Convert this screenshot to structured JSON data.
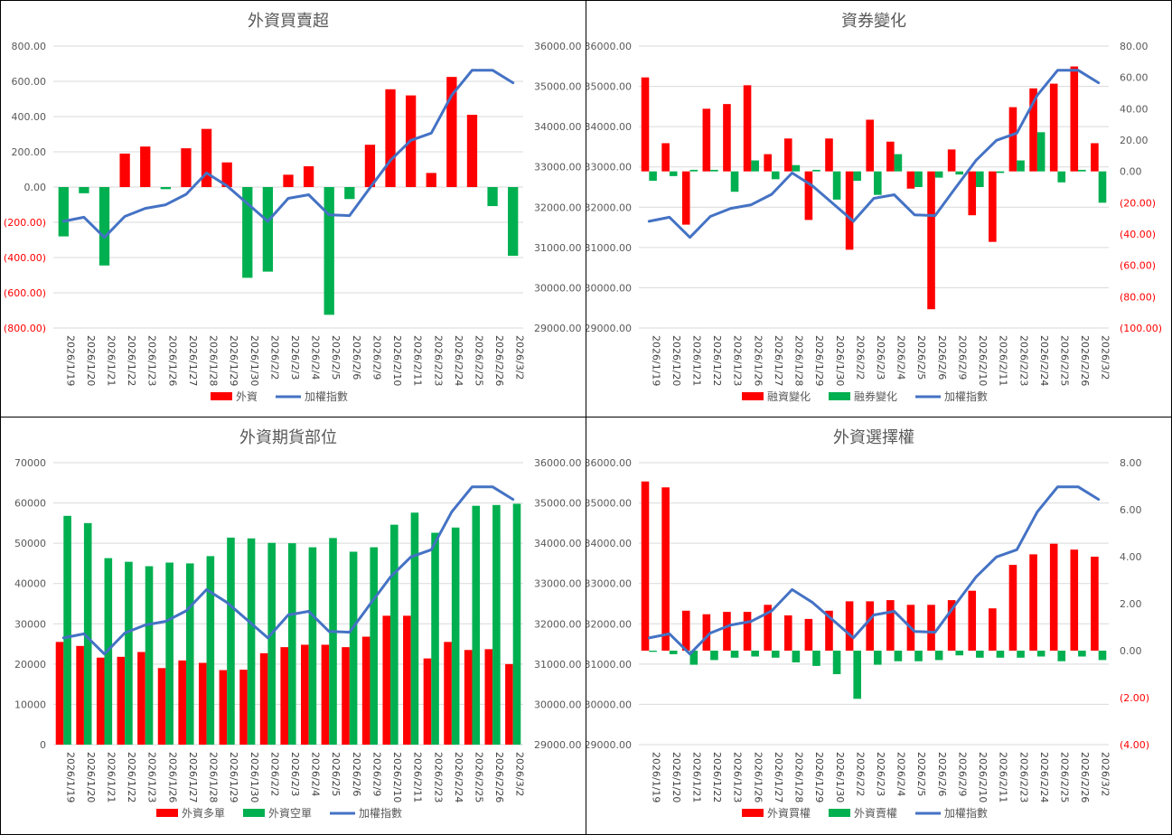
{
  "colors": {
    "red": "#ff0000",
    "green": "#00b050",
    "line": "#4472c4",
    "grid": "#d9d9d9",
    "text": "#595959",
    "neg": "#ff0000"
  },
  "chart_data": [
    {
      "type": "bar",
      "title": "外資買賣超",
      "categories": [
        "2026/1/19",
        "2026/1/20",
        "2026/1/21",
        "2026/1/22",
        "2026/1/23",
        "2026/1/26",
        "2026/1/27",
        "2026/1/28",
        "2026/1/29",
        "2026/1/30",
        "2026/2/2",
        "2026/2/3",
        "2026/2/4",
        "2026/2/5",
        "2026/2/6",
        "2026/2/9",
        "2026/2/10",
        "2026/2/11",
        "2026/2/23",
        "2026/2/24",
        "2026/2/25",
        "2026/2/26",
        "2026/3/2"
      ],
      "series": [
        {
          "name": "外資",
          "kind": "bar",
          "axis": "left",
          "color": "#ff0000",
          "negColor": "#00b050",
          "values": [
            -280,
            -35,
            -445,
            190,
            230,
            -12,
            220,
            330,
            140,
            -515,
            -480,
            70,
            118,
            -725,
            -68,
            240,
            555,
            520,
            80,
            625,
            410,
            -108,
            -390
          ]
        },
        {
          "name": "加權指數",
          "kind": "line",
          "axis": "right",
          "color": "#4472c4",
          "values": [
            31650,
            31750,
            31250,
            31770,
            31970,
            32060,
            32320,
            32850,
            32530,
            32090,
            31650,
            32220,
            32310,
            31810,
            31790,
            32480,
            33160,
            33660,
            33840,
            34780,
            35400,
            35400,
            35090
          ]
        }
      ],
      "leftAxis": {
        "min": -800,
        "max": 800,
        "step": 200,
        "ticks": [
          "(800.00)",
          "(600.00)",
          "(400.00)",
          "(200.00)",
          "0.00",
          "200.00",
          "400.00",
          "600.00",
          "800.00"
        ]
      },
      "rightAxis": {
        "min": 29000,
        "max": 36000,
        "step": 1000,
        "ticks": [
          "29000.00",
          "30000.00",
          "31000.00",
          "32000.00",
          "33000.00",
          "34000.00",
          "35000.00",
          "36000.00"
        ]
      },
      "grid": true,
      "legend_position": "bottom"
    },
    {
      "type": "bar",
      "title": "資券變化",
      "categories": [
        "2026/1/19",
        "2026/1/20",
        "2026/1/21",
        "2026/1/22",
        "2026/1/23",
        "2026/1/26",
        "2026/1/27",
        "2026/1/28",
        "2026/1/29",
        "2026/1/30",
        "2026/2/2",
        "2026/2/3",
        "2026/2/4",
        "2026/2/5",
        "2026/2/6",
        "2026/2/9",
        "2026/2/10",
        "2026/2/11",
        "2026/2/23",
        "2026/2/24",
        "2026/2/25",
        "2026/2/26",
        "2026/3/2"
      ],
      "series": [
        {
          "name": "融資變化",
          "kind": "bar",
          "axis": "right",
          "color": "#ff0000",
          "values": [
            60,
            18,
            -34,
            40,
            43,
            55,
            11,
            21,
            -31,
            21,
            -50,
            33,
            19,
            -11,
            -88,
            14,
            -28,
            -45,
            41,
            53,
            56,
            67,
            18
          ]
        },
        {
          "name": "融券變化",
          "kind": "bar",
          "axis": "right",
          "color": "#00b050",
          "values": [
            -6,
            -3,
            1,
            1,
            -13,
            7,
            -5,
            4,
            1,
            -18,
            -6,
            -15,
            11,
            -10,
            -4,
            -2,
            -10,
            -1,
            7,
            25,
            -7,
            1,
            -20
          ]
        },
        {
          "name": "加權指數",
          "kind": "line",
          "axis": "left",
          "color": "#4472c4",
          "values": [
            31650,
            31750,
            31250,
            31770,
            31970,
            32060,
            32320,
            32850,
            32530,
            32090,
            31650,
            32220,
            32310,
            31810,
            31790,
            32480,
            33160,
            33660,
            33840,
            34780,
            35400,
            35400,
            35090
          ]
        }
      ],
      "leftAxis": {
        "min": 29000,
        "max": 36000,
        "step": 1000,
        "ticks": [
          "29000.00",
          "30000.00",
          "31000.00",
          "32000.00",
          "33000.00",
          "34000.00",
          "35000.00",
          "36000.00"
        ]
      },
      "rightAxis": {
        "min": -100,
        "max": 80,
        "step": 20,
        "ticks": [
          "(100.00)",
          "(80.00)",
          "(60.00)",
          "(40.00)",
          "(20.00)",
          "0.00",
          "20.00",
          "40.00",
          "60.00",
          "80.00"
        ]
      },
      "grid": true,
      "legend_position": "bottom"
    },
    {
      "type": "bar",
      "title": "外資期貨部位",
      "categories": [
        "2026/1/19",
        "2026/1/20",
        "2026/1/21",
        "2026/1/22",
        "2026/1/23",
        "2026/1/26",
        "2026/1/27",
        "2026/1/28",
        "2026/1/29",
        "2026/1/30",
        "2026/2/2",
        "2026/2/3",
        "2026/2/4",
        "2026/2/5",
        "2026/2/6",
        "2026/2/9",
        "2026/2/10",
        "2026/2/11",
        "2026/2/23",
        "2026/2/24",
        "2026/2/25",
        "2026/2/26",
        "2026/3/2"
      ],
      "series": [
        {
          "name": "外資多單",
          "kind": "bar",
          "axis": "left",
          "color": "#ff0000",
          "values": [
            25500,
            24500,
            21600,
            21800,
            23000,
            19000,
            20900,
            20300,
            18500,
            18600,
            22700,
            24200,
            24800,
            24800,
            24200,
            26800,
            32000,
            32000,
            21400,
            25500,
            23500,
            23700,
            20000
          ]
        },
        {
          "name": "外資空單",
          "kind": "bar",
          "axis": "left",
          "color": "#00b050",
          "values": [
            56800,
            55000,
            46300,
            45400,
            44300,
            45200,
            45000,
            46800,
            51400,
            51200,
            50100,
            50000,
            49000,
            51300,
            47900,
            49000,
            54600,
            57600,
            52600,
            53900,
            59300,
            59500,
            59800
          ]
        },
        {
          "name": "加權指數",
          "kind": "line",
          "axis": "right",
          "color": "#4472c4",
          "values": [
            31650,
            31750,
            31250,
            31770,
            31970,
            32060,
            32320,
            32850,
            32530,
            32090,
            31650,
            32220,
            32310,
            31810,
            31790,
            32480,
            33160,
            33660,
            33840,
            34780,
            35400,
            35400,
            35090
          ]
        }
      ],
      "leftAxis": {
        "min": 0,
        "max": 70000,
        "step": 10000,
        "ticks": [
          "0",
          "10000",
          "20000",
          "30000",
          "40000",
          "50000",
          "60000",
          "70000"
        ]
      },
      "rightAxis": {
        "min": 29000,
        "max": 36000,
        "step": 1000,
        "ticks": [
          "29000.00",
          "30000.00",
          "31000.00",
          "32000.00",
          "33000.00",
          "34000.00",
          "35000.00",
          "36000.00"
        ]
      },
      "grid": true,
      "legend_position": "bottom"
    },
    {
      "type": "bar",
      "title": "外資選擇權",
      "categories": [
        "2026/1/19",
        "2026/1/20",
        "2026/1/21",
        "2026/1/22",
        "2026/1/23",
        "2026/1/26",
        "2026/1/27",
        "2026/1/28",
        "2026/1/29",
        "2026/1/30",
        "2026/2/2",
        "2026/2/3",
        "2026/2/4",
        "2026/2/5",
        "2026/2/6",
        "2026/2/9",
        "2026/2/10",
        "2026/2/11",
        "2026/2/23",
        "2026/2/24",
        "2026/2/25",
        "2026/2/26",
        "2026/3/2"
      ],
      "series": [
        {
          "name": "外資買權",
          "kind": "bar",
          "axis": "right",
          "color": "#ff0000",
          "values": [
            7.2,
            6.95,
            1.7,
            1.55,
            1.65,
            1.65,
            1.95,
            1.5,
            1.35,
            1.7,
            2.1,
            2.1,
            2.15,
            1.95,
            1.95,
            2.15,
            2.55,
            1.8,
            3.65,
            4.1,
            4.55,
            4.3,
            4.0
          ]
        },
        {
          "name": "外資賣權",
          "kind": "bar",
          "axis": "right",
          "color": "#00b050",
          "values": [
            -0.05,
            -0.15,
            -0.6,
            -0.4,
            -0.3,
            -0.25,
            -0.3,
            -0.5,
            -0.65,
            -1.0,
            -2.05,
            -0.6,
            -0.45,
            -0.45,
            -0.4,
            -0.2,
            -0.3,
            -0.3,
            -0.3,
            -0.25,
            -0.45,
            -0.25,
            -0.4
          ]
        },
        {
          "name": "加權指數",
          "kind": "line",
          "axis": "left",
          "color": "#4472c4",
          "values": [
            31650,
            31750,
            31250,
            31770,
            31970,
            32060,
            32320,
            32850,
            32530,
            32090,
            31650,
            32220,
            32310,
            31810,
            31790,
            32480,
            33160,
            33660,
            33840,
            34780,
            35400,
            35400,
            35090
          ]
        }
      ],
      "leftAxis": {
        "min": 29000,
        "max": 36000,
        "step": 1000,
        "ticks": [
          "29000.00",
          "30000.00",
          "31000.00",
          "32000.00",
          "33000.00",
          "34000.00",
          "35000.00",
          "36000.00"
        ]
      },
      "rightAxis": {
        "min": -4,
        "max": 8,
        "step": 2,
        "ticks": [
          "(4.00)",
          "(2.00)",
          "0.00",
          "2.00",
          "4.00",
          "6.00",
          "8.00"
        ]
      },
      "grid": true,
      "legend_position": "bottom"
    }
  ]
}
